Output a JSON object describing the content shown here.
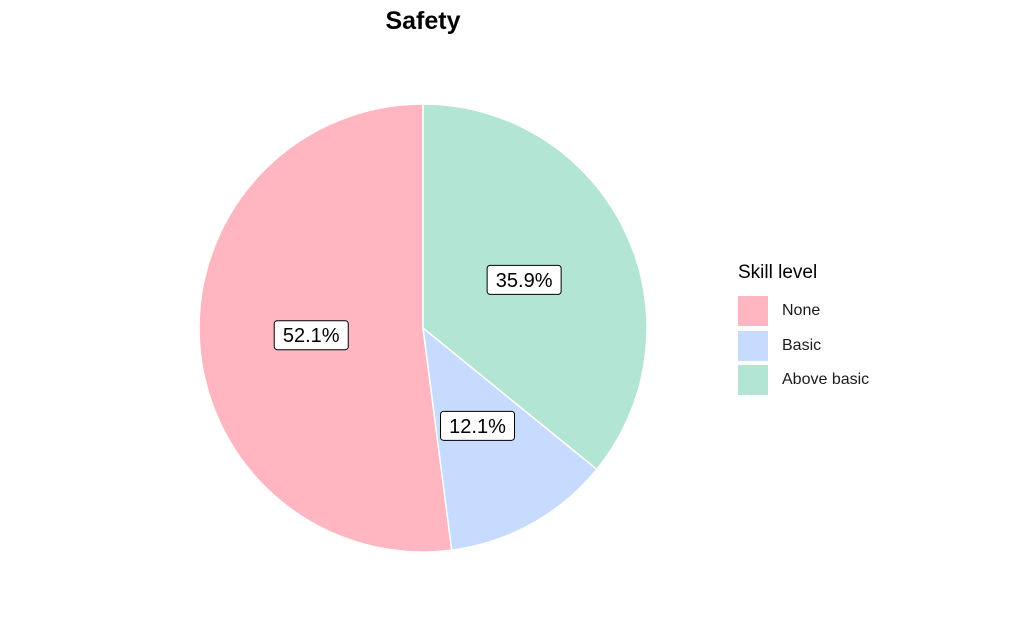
{
  "chart_data": {
    "type": "pie",
    "title": "Safety",
    "legend_title": "Skill level",
    "legend_position": "right",
    "categories": [
      "None",
      "Basic",
      "Above basic"
    ],
    "values": [
      52.1,
      12.1,
      35.9
    ],
    "labels": [
      "52.1%",
      "12.1%",
      "35.9%"
    ],
    "colors": [
      "#FFB6C1",
      "#C6DBFF",
      "#B2E5D4"
    ]
  }
}
